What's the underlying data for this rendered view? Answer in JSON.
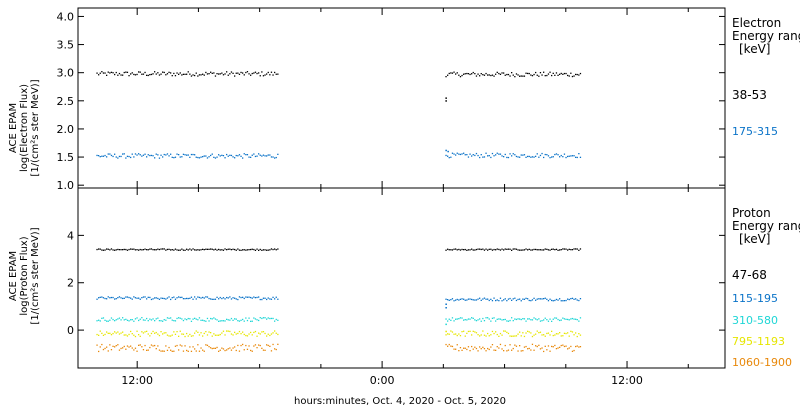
{
  "xlabel": "hours:minutes, Oct.  4, 2020 - Oct.  5, 2020",
  "chart_data": [
    {
      "type": "scatter",
      "ylabel": [
        "ACE EPAM",
        "log(Electron Flux)",
        "[1/(cm²s ster MeV)]"
      ],
      "ylim": [
        0.95,
        4.15
      ],
      "yticks": [
        "1.0",
        "1.5",
        "2.0",
        "2.5",
        "3.0",
        "3.5",
        "4.0"
      ],
      "legend": {
        "title": [
          "Electron",
          "Energy ranges",
          "[keV]"
        ],
        "position": "right"
      },
      "series": [
        {
          "name": "38-53",
          "color": "#000000",
          "segments": [
            {
              "x": [
                10.0,
                18.9
              ],
              "y": 2.98,
              "jitter": 0.04
            },
            {
              "x": [
                27.1,
                33.7
              ],
              "y": 2.97,
              "jitter": 0.04
            }
          ],
          "extra": [
            [
              27.1,
              2.5
            ],
            [
              27.1,
              2.55
            ]
          ]
        },
        {
          "name": "175-315",
          "color": "#0a73c8",
          "segments": [
            {
              "x": [
                10.0,
                18.9
              ],
              "y": 1.52,
              "jitter": 0.04
            },
            {
              "x": [
                27.1,
                33.7
              ],
              "y": 1.53,
              "jitter": 0.04
            }
          ],
          "extra": [
            [
              27.1,
              1.62
            ],
            [
              27.2,
              1.6
            ]
          ]
        }
      ]
    },
    {
      "type": "scatter",
      "ylabel": [
        "ACE EPAM",
        "log(Proton Flux)",
        "[1/(cm²s ster MeV)]"
      ],
      "ylim": [
        -1.6,
        6.0
      ],
      "yticks": [
        "0",
        "2",
        "4"
      ],
      "legend": {
        "title": [
          "Proton",
          "Energy ranges",
          "[keV]"
        ],
        "position": "right"
      },
      "series": [
        {
          "name": "47-68",
          "color": "#000000",
          "segments": [
            {
              "x": [
                10.0,
                18.9
              ],
              "y": 3.4,
              "jitter": 0.03
            },
            {
              "x": [
                27.1,
                33.7
              ],
              "y": 3.4,
              "jitter": 0.03
            }
          ]
        },
        {
          "name": "115-195",
          "color": "#0a73c8",
          "segments": [
            {
              "x": [
                10.0,
                18.9
              ],
              "y": 1.35,
              "jitter": 0.06
            },
            {
              "x": [
                27.1,
                33.7
              ],
              "y": 1.3,
              "jitter": 0.06
            }
          ],
          "extra": [
            [
              27.1,
              1.1
            ],
            [
              27.1,
              0.95
            ]
          ]
        },
        {
          "name": "310-580",
          "color": "#1fd6d6",
          "segments": [
            {
              "x": [
                10.0,
                18.9
              ],
              "y": 0.45,
              "jitter": 0.08
            },
            {
              "x": [
                27.1,
                33.7
              ],
              "y": 0.45,
              "jitter": 0.08
            }
          ],
          "extra": [
            [
              27.1,
              0.25
            ]
          ]
        },
        {
          "name": "795-1193",
          "color": "#e6e600",
          "segments": [
            {
              "x": [
                10.0,
                18.9
              ],
              "y": -0.15,
              "jitter": 0.12
            },
            {
              "x": [
                27.1,
                33.7
              ],
              "y": -0.15,
              "jitter": 0.12
            }
          ],
          "extra": [
            [
              27.1,
              -0.05
            ]
          ]
        },
        {
          "name": "1060-1900",
          "color": "#e8880a",
          "segments": [
            {
              "x": [
                10.0,
                18.9
              ],
              "y": -0.75,
              "jitter": 0.15
            },
            {
              "x": [
                27.1,
                33.7
              ],
              "y": -0.75,
              "jitter": 0.15
            }
          ]
        }
      ]
    }
  ],
  "xaxis": {
    "range": [
      9.1,
      40.8
    ],
    "ticks": [
      {
        "value": 12,
        "label": "12:00"
      },
      {
        "value": 24,
        "label": "0:00"
      },
      {
        "value": 36,
        "label": "12:00"
      }
    ],
    "minor_step": 3
  }
}
